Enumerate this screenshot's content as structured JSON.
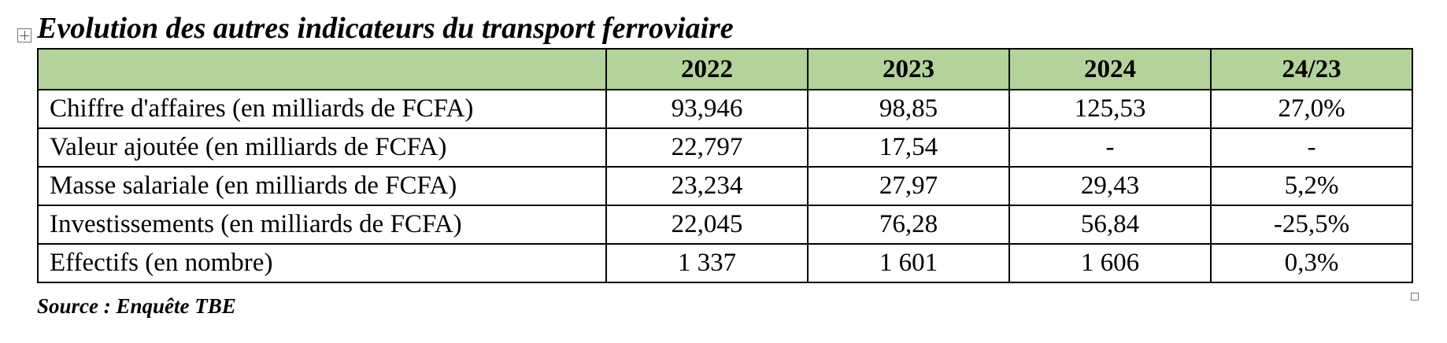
{
  "title": "Evolution des autres indicateurs du transport ferroviaire",
  "table": {
    "header": [
      "2022",
      "2023",
      "2024",
      "24/23"
    ],
    "rows": [
      [
        "Chiffre d'affaires (en milliards de FCFA)",
        "93,946",
        "98,85",
        "125,53",
        "27,0%"
      ],
      [
        "Valeur ajoutée (en milliards de FCFA)",
        "22,797",
        "17,54",
        "-",
        "-"
      ],
      [
        "Masse salariale (en milliards de FCFA)",
        "23,234",
        "27,97",
        "29,43",
        "5,2%"
      ],
      [
        "Investissements (en milliards de FCFA)",
        "22,045",
        "76,28",
        "56,84",
        "-25,5%"
      ],
      [
        "Effectifs (en nombre)",
        "1 337",
        "1 601",
        "1 606",
        "0,3%"
      ]
    ]
  },
  "source": "Source : Enquête TBE"
}
